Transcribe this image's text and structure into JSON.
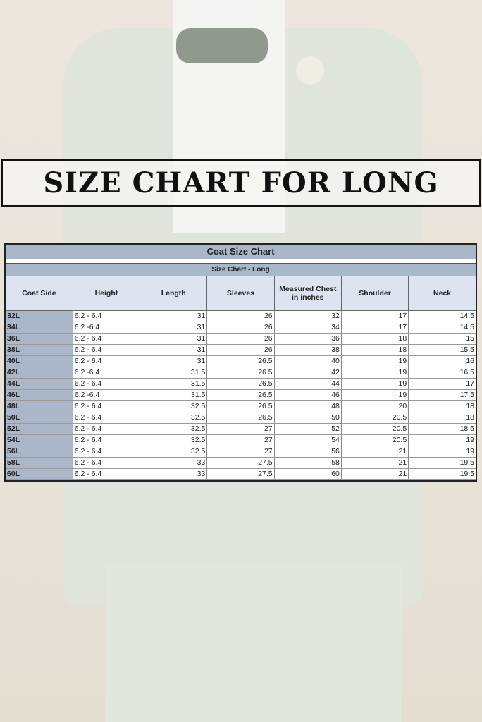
{
  "banner": {
    "title": "SIZE CHART FOR LONG"
  },
  "table": {
    "title": "Coat Size Chart",
    "subtitle": "Size Chart - Long",
    "headers": [
      "Coat Side",
      "Height",
      "Length",
      "Sleeves",
      "Measured Chest in inches",
      "Shoulder",
      "Neck"
    ],
    "rows": [
      [
        "32L",
        "6.2 - 6.4",
        "31",
        "26",
        "32",
        "17",
        "14.5"
      ],
      [
        "34L",
        "6.2 -6.4",
        "31",
        "26",
        "34",
        "17",
        "14.5"
      ],
      [
        "36L",
        "6.2 - 6.4",
        "31",
        "26",
        "36",
        "18",
        "15"
      ],
      [
        "38L",
        "6.2 - 6.4",
        "31",
        "26",
        "38",
        "18",
        "15.5"
      ],
      [
        "40L",
        "6.2 - 6.4",
        "31",
        "26.5",
        "40",
        "19",
        "16"
      ],
      [
        "42L",
        "6.2 -6.4",
        "31.5",
        "26.5",
        "42",
        "19",
        "16.5"
      ],
      [
        "44L",
        "6.2 - 6.4",
        "31.5",
        "26.5",
        "44",
        "19",
        "17"
      ],
      [
        "46L",
        "6.2 -6.4",
        "31.5",
        "26.5",
        "46",
        "19",
        "17.5"
      ],
      [
        "48L",
        "6.2 - 6.4",
        "32.5",
        "26.5",
        "48",
        "20",
        "18"
      ],
      [
        "50L",
        "6.2 - 6.4",
        "32.5",
        "26.5",
        "50",
        "20.5",
        "18"
      ],
      [
        "52L",
        "6.2 - 6.4",
        "32.5",
        "27",
        "52",
        "20.5",
        "18.5"
      ],
      [
        "54L",
        "6.2 - 6.4",
        "32.5",
        "27",
        "54",
        "20.5",
        "19"
      ],
      [
        "56L",
        "6.2 - 6.4",
        "32.5",
        "27",
        "56",
        "21",
        "19"
      ],
      [
        "58L",
        "6.2 - 6.4",
        "33",
        "27.5",
        "58",
        "21",
        "19.5"
      ],
      [
        "60L",
        "6.2 - 6.4",
        "33",
        "27.5",
        "60",
        "21",
        "19.5"
      ]
    ]
  },
  "colors": {
    "header_fill": "#a9b7c9",
    "column_header_fill": "#dde3f0",
    "suit": "#dfe5da",
    "background": "#ece6de"
  }
}
